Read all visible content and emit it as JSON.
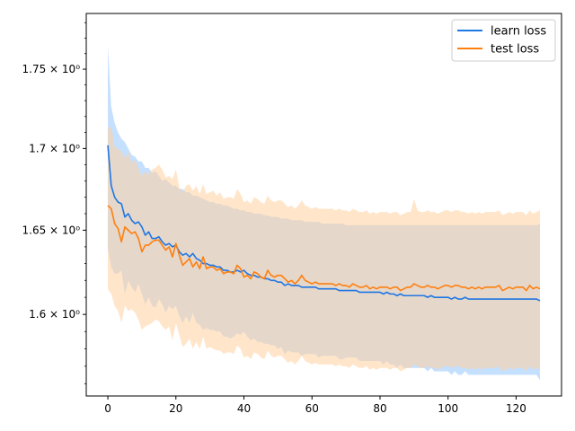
{
  "chart_data": {
    "type": "line",
    "title": "",
    "xlabel": "",
    "ylabel": "",
    "y_scale": "log",
    "xlim": [
      -6.35,
      133.35
    ],
    "ylim": [
      1.553,
      1.786
    ],
    "grid": false,
    "legend_position": "top-right",
    "x_ticks": [
      0,
      20,
      40,
      60,
      80,
      100,
      120
    ],
    "x_tick_labels": [
      "0",
      "20",
      "40",
      "60",
      "80",
      "100",
      "120"
    ],
    "y_ticks": [
      1.6,
      1.65,
      1.7,
      1.75
    ],
    "y_tick_labels": [
      "1.6 × 10⁰",
      "1.65 × 10⁰",
      "1.7 × 10⁰",
      "1.75 × 10⁰"
    ],
    "x": [
      0,
      1,
      2,
      3,
      4,
      5,
      6,
      7,
      8,
      9,
      10,
      11,
      12,
      13,
      14,
      15,
      16,
      17,
      18,
      19,
      20,
      21,
      22,
      23,
      24,
      25,
      26,
      27,
      28,
      29,
      30,
      31,
      32,
      33,
      34,
      35,
      36,
      37,
      38,
      39,
      40,
      41,
      42,
      43,
      44,
      45,
      46,
      47,
      48,
      49,
      50,
      51,
      52,
      53,
      54,
      55,
      56,
      57,
      58,
      59,
      60,
      61,
      62,
      63,
      64,
      65,
      66,
      67,
      68,
      69,
      70,
      71,
      72,
      73,
      74,
      75,
      76,
      77,
      78,
      79,
      80,
      81,
      82,
      83,
      84,
      85,
      86,
      87,
      88,
      89,
      90,
      91,
      92,
      93,
      94,
      95,
      96,
      97,
      98,
      99,
      100,
      101,
      102,
      103,
      104,
      105,
      106,
      107,
      108,
      109,
      110,
      111,
      112,
      113,
      114,
      115,
      116,
      117,
      118,
      119,
      120,
      121,
      122,
      123,
      124,
      125,
      126,
      127
    ],
    "series": [
      {
        "name": "learn loss",
        "color": "#1f77e4",
        "band_color": "#9ecbff",
        "values": [
          1.702,
          1.677,
          1.67,
          1.667,
          1.666,
          1.658,
          1.66,
          1.656,
          1.654,
          1.655,
          1.652,
          1.647,
          1.649,
          1.645,
          1.645,
          1.646,
          1.643,
          1.641,
          1.642,
          1.64,
          1.641,
          1.637,
          1.635,
          1.636,
          1.634,
          1.636,
          1.633,
          1.632,
          1.63,
          1.63,
          1.629,
          1.629,
          1.628,
          1.628,
          1.626,
          1.626,
          1.625,
          1.625,
          1.626,
          1.625,
          1.626,
          1.624,
          1.623,
          1.623,
          1.622,
          1.622,
          1.621,
          1.621,
          1.62,
          1.62,
          1.619,
          1.619,
          1.617,
          1.618,
          1.617,
          1.617,
          1.617,
          1.616,
          1.616,
          1.616,
          1.616,
          1.616,
          1.615,
          1.615,
          1.615,
          1.615,
          1.615,
          1.615,
          1.614,
          1.614,
          1.614,
          1.614,
          1.614,
          1.614,
          1.613,
          1.613,
          1.613,
          1.613,
          1.613,
          1.613,
          1.613,
          1.612,
          1.613,
          1.612,
          1.612,
          1.611,
          1.612,
          1.611,
          1.611,
          1.611,
          1.611,
          1.611,
          1.611,
          1.611,
          1.61,
          1.611,
          1.61,
          1.61,
          1.61,
          1.61,
          1.61,
          1.609,
          1.61,
          1.609,
          1.609,
          1.61,
          1.609,
          1.609,
          1.609,
          1.609,
          1.609,
          1.609,
          1.609,
          1.609,
          1.609,
          1.609,
          1.609,
          1.609,
          1.609,
          1.609,
          1.609,
          1.609,
          1.609,
          1.609,
          1.609,
          1.609,
          1.609,
          1.608
        ],
        "band_upper": [
          1.765,
          1.726,
          1.716,
          1.71,
          1.706,
          1.704,
          1.7,
          1.696,
          1.695,
          1.692,
          1.692,
          1.688,
          1.688,
          1.685,
          1.686,
          1.683,
          1.68,
          1.681,
          1.679,
          1.677,
          1.677,
          1.675,
          1.675,
          1.673,
          1.673,
          1.671,
          1.671,
          1.67,
          1.669,
          1.668,
          1.667,
          1.667,
          1.666,
          1.666,
          1.665,
          1.665,
          1.664,
          1.663,
          1.663,
          1.662,
          1.662,
          1.661,
          1.661,
          1.66,
          1.66,
          1.66,
          1.659,
          1.659,
          1.658,
          1.658,
          1.658,
          1.657,
          1.657,
          1.657,
          1.656,
          1.656,
          1.656,
          1.656,
          1.655,
          1.655,
          1.655,
          1.655,
          1.655,
          1.654,
          1.654,
          1.654,
          1.654,
          1.654,
          1.654,
          1.654,
          1.653,
          1.653,
          1.653,
          1.653,
          1.653,
          1.653,
          1.653,
          1.653,
          1.653,
          1.653,
          1.653,
          1.653,
          1.653,
          1.653,
          1.653,
          1.653,
          1.653,
          1.653,
          1.653,
          1.653,
          1.653,
          1.653,
          1.653,
          1.653,
          1.653,
          1.653,
          1.653,
          1.653,
          1.653,
          1.653,
          1.653,
          1.653,
          1.653,
          1.653,
          1.653,
          1.653,
          1.653,
          1.653,
          1.653,
          1.653,
          1.653,
          1.653,
          1.653,
          1.653,
          1.653,
          1.653,
          1.653,
          1.653,
          1.653,
          1.653,
          1.653,
          1.653,
          1.653,
          1.653,
          1.653,
          1.653,
          1.653,
          1.654
        ],
        "band_lower": [
          1.639,
          1.628,
          1.624,
          1.624,
          1.626,
          1.612,
          1.62,
          1.616,
          1.613,
          1.618,
          1.612,
          1.606,
          1.61,
          1.605,
          1.604,
          1.609,
          1.606,
          1.601,
          1.605,
          1.603,
          1.605,
          1.599,
          1.595,
          1.599,
          1.595,
          1.601,
          1.595,
          1.594,
          1.591,
          1.592,
          1.591,
          1.591,
          1.59,
          1.59,
          1.587,
          1.587,
          1.586,
          1.587,
          1.589,
          1.588,
          1.59,
          1.587,
          1.585,
          1.586,
          1.584,
          1.584,
          1.583,
          1.583,
          1.582,
          1.582,
          1.58,
          1.581,
          1.577,
          1.579,
          1.578,
          1.578,
          1.578,
          1.576,
          1.577,
          1.577,
          1.577,
          1.577,
          1.575,
          1.576,
          1.576,
          1.576,
          1.576,
          1.576,
          1.574,
          1.574,
          1.575,
          1.575,
          1.575,
          1.575,
          1.573,
          1.573,
          1.573,
          1.573,
          1.573,
          1.573,
          1.573,
          1.571,
          1.573,
          1.571,
          1.571,
          1.569,
          1.571,
          1.569,
          1.569,
          1.569,
          1.569,
          1.569,
          1.569,
          1.569,
          1.567,
          1.569,
          1.567,
          1.567,
          1.567,
          1.567,
          1.567,
          1.565,
          1.567,
          1.565,
          1.565,
          1.567,
          1.565,
          1.565,
          1.565,
          1.565,
          1.565,
          1.565,
          1.565,
          1.565,
          1.565,
          1.565,
          1.565,
          1.565,
          1.565,
          1.565,
          1.565,
          1.565,
          1.565,
          1.565,
          1.565,
          1.565,
          1.565,
          1.562
        ]
      },
      {
        "name": "test loss",
        "color": "#ff7f0e",
        "band_color": "#ffcf9e",
        "values": [
          1.665,
          1.663,
          1.654,
          1.651,
          1.643,
          1.652,
          1.65,
          1.648,
          1.649,
          1.645,
          1.637,
          1.641,
          1.641,
          1.643,
          1.644,
          1.644,
          1.641,
          1.638,
          1.64,
          1.634,
          1.642,
          1.635,
          1.629,
          1.631,
          1.633,
          1.628,
          1.631,
          1.627,
          1.634,
          1.627,
          1.628,
          1.628,
          1.626,
          1.627,
          1.624,
          1.625,
          1.625,
          1.624,
          1.629,
          1.627,
          1.622,
          1.623,
          1.621,
          1.625,
          1.624,
          1.622,
          1.621,
          1.626,
          1.623,
          1.622,
          1.623,
          1.623,
          1.621,
          1.619,
          1.62,
          1.618,
          1.62,
          1.623,
          1.62,
          1.619,
          1.618,
          1.619,
          1.618,
          1.618,
          1.618,
          1.618,
          1.618,
          1.617,
          1.618,
          1.617,
          1.617,
          1.616,
          1.618,
          1.617,
          1.616,
          1.616,
          1.617,
          1.615,
          1.616,
          1.615,
          1.616,
          1.616,
          1.616,
          1.615,
          1.616,
          1.616,
          1.614,
          1.615,
          1.616,
          1.616,
          1.618,
          1.617,
          1.616,
          1.616,
          1.617,
          1.616,
          1.616,
          1.615,
          1.616,
          1.617,
          1.617,
          1.616,
          1.617,
          1.617,
          1.616,
          1.616,
          1.615,
          1.616,
          1.615,
          1.616,
          1.615,
          1.616,
          1.616,
          1.616,
          1.616,
          1.617,
          1.614,
          1.615,
          1.616,
          1.615,
          1.616,
          1.616,
          1.616,
          1.614,
          1.617,
          1.615,
          1.616,
          1.615
        ],
        "band_upper": [
          1.712,
          1.714,
          1.701,
          1.7,
          1.698,
          1.694,
          1.698,
          1.691,
          1.693,
          1.688,
          1.683,
          1.686,
          1.684,
          1.687,
          1.688,
          1.69,
          1.687,
          1.682,
          1.683,
          1.681,
          1.687,
          1.676,
          1.673,
          1.677,
          1.678,
          1.674,
          1.677,
          1.672,
          1.678,
          1.672,
          1.673,
          1.674,
          1.671,
          1.673,
          1.669,
          1.67,
          1.67,
          1.669,
          1.675,
          1.672,
          1.667,
          1.668,
          1.666,
          1.67,
          1.669,
          1.667,
          1.666,
          1.671,
          1.668,
          1.667,
          1.668,
          1.668,
          1.666,
          1.664,
          1.665,
          1.663,
          1.665,
          1.668,
          1.665,
          1.664,
          1.663,
          1.664,
          1.663,
          1.663,
          1.663,
          1.663,
          1.663,
          1.662,
          1.663,
          1.662,
          1.662,
          1.661,
          1.663,
          1.662,
          1.661,
          1.661,
          1.662,
          1.66,
          1.661,
          1.66,
          1.661,
          1.661,
          1.661,
          1.66,
          1.661,
          1.661,
          1.659,
          1.66,
          1.661,
          1.661,
          1.669,
          1.662,
          1.661,
          1.661,
          1.662,
          1.661,
          1.661,
          1.66,
          1.661,
          1.662,
          1.662,
          1.661,
          1.662,
          1.662,
          1.661,
          1.661,
          1.66,
          1.661,
          1.66,
          1.661,
          1.66,
          1.661,
          1.661,
          1.661,
          1.661,
          1.662,
          1.659,
          1.66,
          1.661,
          1.66,
          1.661,
          1.661,
          1.661,
          1.659,
          1.662,
          1.66,
          1.661,
          1.662
        ],
        "band_lower": [
          1.615,
          1.612,
          1.605,
          1.602,
          1.595,
          1.605,
          1.602,
          1.603,
          1.601,
          1.597,
          1.591,
          1.593,
          1.594,
          1.595,
          1.597,
          1.596,
          1.593,
          1.591,
          1.593,
          1.585,
          1.595,
          1.588,
          1.581,
          1.583,
          1.586,
          1.58,
          1.584,
          1.58,
          1.587,
          1.58,
          1.581,
          1.58,
          1.579,
          1.579,
          1.577,
          1.578,
          1.578,
          1.577,
          1.582,
          1.58,
          1.575,
          1.576,
          1.574,
          1.578,
          1.577,
          1.575,
          1.574,
          1.579,
          1.576,
          1.575,
          1.576,
          1.576,
          1.574,
          1.572,
          1.573,
          1.571,
          1.573,
          1.576,
          1.573,
          1.572,
          1.571,
          1.572,
          1.571,
          1.571,
          1.571,
          1.571,
          1.571,
          1.57,
          1.571,
          1.57,
          1.57,
          1.569,
          1.571,
          1.57,
          1.569,
          1.569,
          1.57,
          1.568,
          1.569,
          1.568,
          1.569,
          1.569,
          1.569,
          1.568,
          1.569,
          1.569,
          1.567,
          1.568,
          1.569,
          1.569,
          1.571,
          1.57,
          1.569,
          1.569,
          1.57,
          1.569,
          1.569,
          1.568,
          1.569,
          1.57,
          1.57,
          1.569,
          1.57,
          1.57,
          1.569,
          1.569,
          1.568,
          1.569,
          1.568,
          1.569,
          1.568,
          1.569,
          1.569,
          1.569,
          1.569,
          1.57,
          1.567,
          1.568,
          1.569,
          1.568,
          1.569,
          1.569,
          1.569,
          1.567,
          1.57,
          1.568,
          1.569,
          1.568
        ]
      }
    ]
  }
}
